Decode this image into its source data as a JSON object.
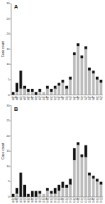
{
  "chart_data": [
    {
      "type": "bar",
      "stacked": true,
      "grid": false,
      "title": "A",
      "ylabel": "Case count",
      "categories": [
        "Jan\n98",
        "Apr\n98",
        "Jul\n98",
        "Oct\n98",
        "Jan\n99",
        "Apr\n99",
        "Jul\n99",
        "Oct\n99",
        "Jan\n00",
        "Apr\n00",
        "Jul\n00",
        "Oct\n00",
        "Jan\n01",
        "Apr\n01",
        "Jul\n01",
        "Oct\n01",
        "Jan\n02",
        "Apr\n02",
        "Jul\n02",
        "Oct\n02",
        "Jan\n03",
        "Apr\n03",
        "Jul\n03",
        "Oct\n03"
      ],
      "series": [
        {
          "color": "#bbbbbb",
          "values": [
            0,
            1,
            2,
            2,
            1,
            1,
            0,
            1,
            1,
            2,
            1,
            2,
            3,
            4,
            2,
            5,
            13,
            16,
            12,
            15,
            8,
            7,
            5,
            4
          ]
        },
        {
          "color": "#111111",
          "values": [
            1,
            3,
            6,
            1,
            1,
            1,
            1,
            1,
            0,
            1,
            1,
            1,
            1,
            1,
            1,
            1,
            1,
            1,
            1,
            1,
            1,
            1,
            1,
            1
          ]
        }
      ],
      "ylim": [
        0,
        30
      ],
      "yticks": [
        0,
        5,
        10,
        15,
        20,
        25,
        30
      ]
    },
    {
      "type": "bar",
      "stacked": true,
      "grid": false,
      "title": "B",
      "ylabel": "Case count",
      "categories": [
        "Jan\n98",
        "Apr\n98",
        "Jul\n98",
        "Oct\n98",
        "Jan\n99",
        "Apr\n99",
        "Jul\n99",
        "Oct\n99",
        "Jan\n00",
        "Apr\n00",
        "Jul\n00",
        "Oct\n00",
        "Jan\n01",
        "Apr\n01",
        "Jul\n01",
        "Oct\n01",
        "Jan\n02",
        "Apr\n02",
        "Jul\n02",
        "Oct\n02",
        "Jan\n03",
        "Apr\n03",
        "Jul\n03",
        "Oct\n03"
      ],
      "series": [
        {
          "color": "#bbbbbb",
          "values": [
            0,
            1,
            0,
            0,
            0,
            0,
            0,
            1,
            1,
            2,
            1,
            1,
            2,
            3,
            3,
            4,
            12,
            17,
            13,
            13,
            7,
            6,
            5,
            4
          ]
        },
        {
          "color": "#111111",
          "values": [
            1,
            2,
            8,
            4,
            1,
            2,
            2,
            1,
            0,
            1,
            1,
            2,
            2,
            2,
            1,
            2,
            4,
            1,
            1,
            4,
            1,
            1,
            1,
            1
          ]
        }
      ],
      "ylim": [
        0,
        30
      ],
      "yticks": [
        0,
        5,
        10,
        15,
        20,
        25,
        30
      ]
    }
  ]
}
